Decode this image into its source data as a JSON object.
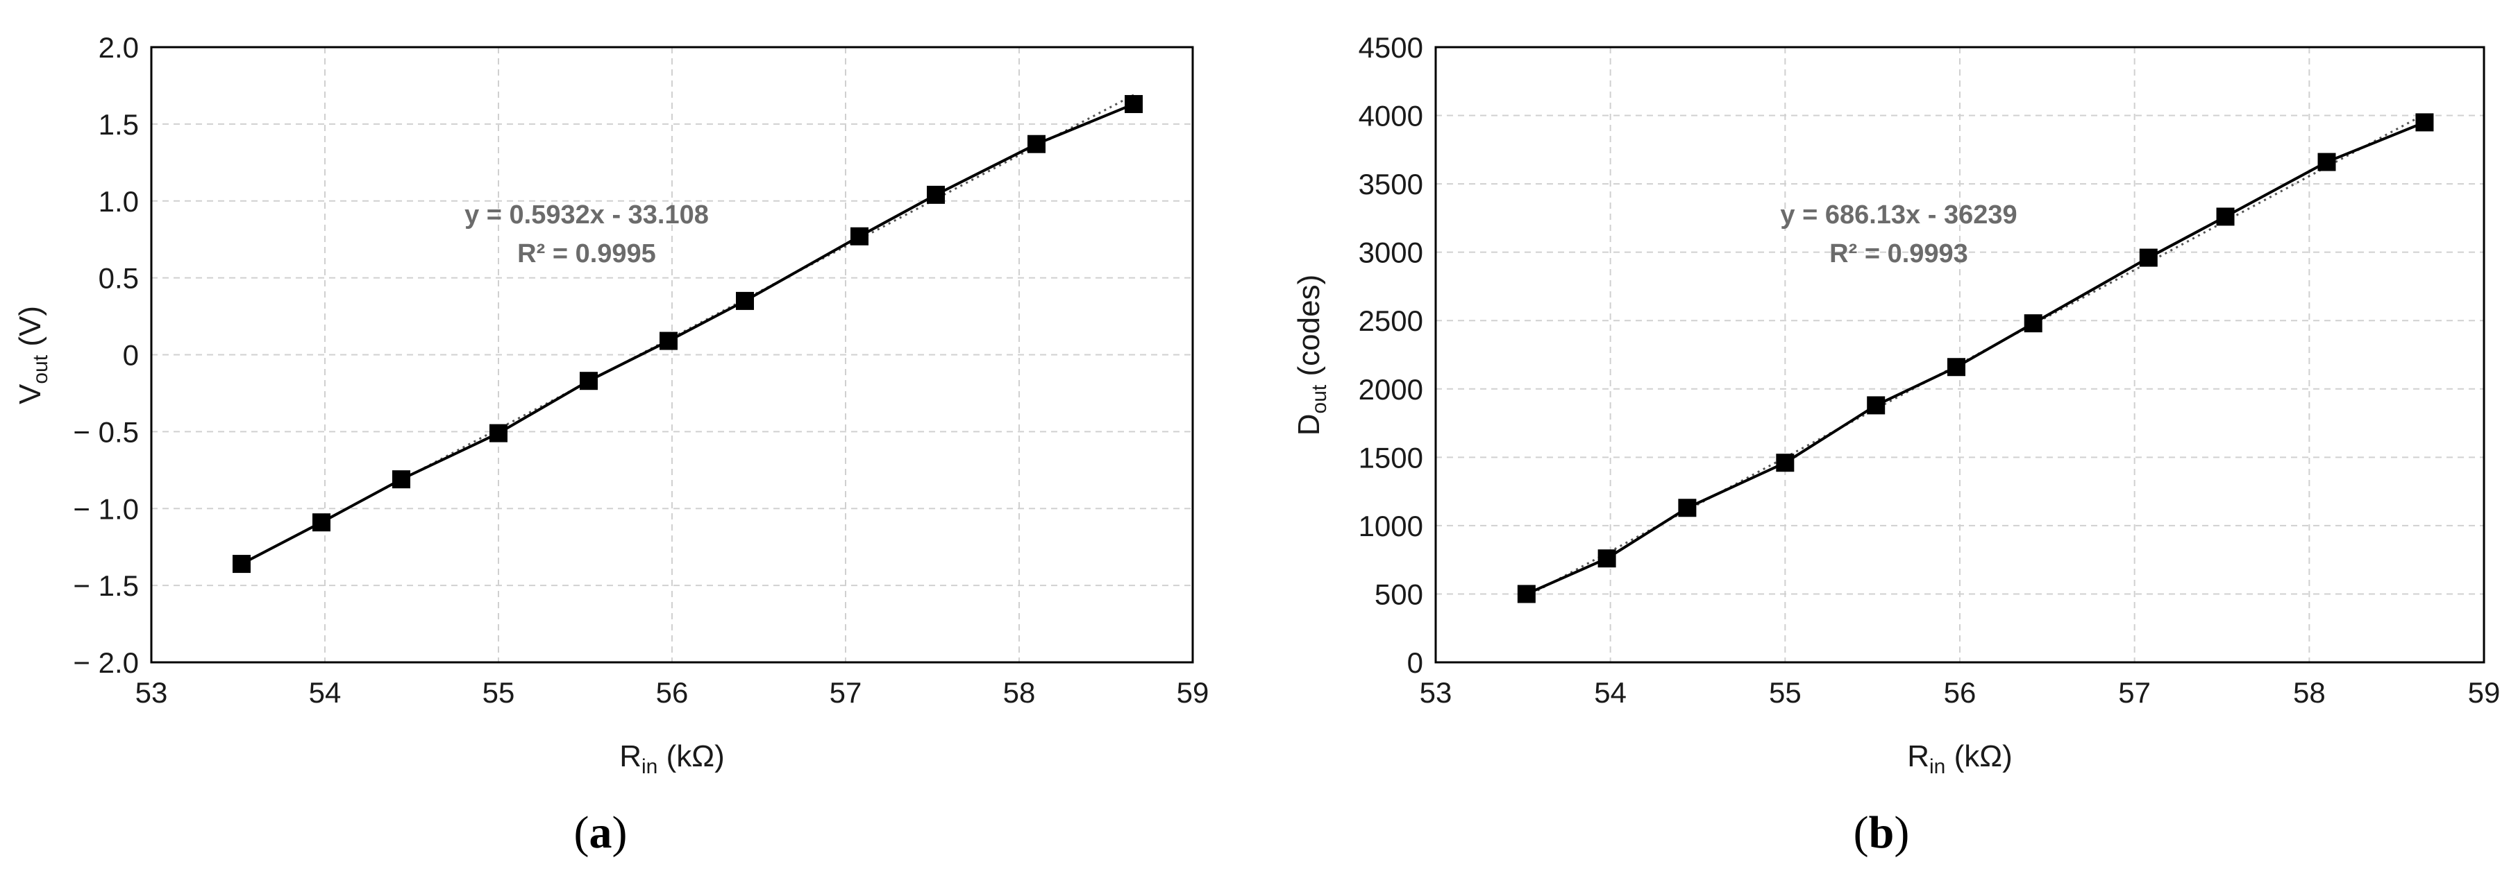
{
  "chart_data": [
    {
      "type": "line",
      "panel_label": "a",
      "xlabel": {
        "main": "R",
        "sub": "in",
        "rest": " (kΩ)"
      },
      "ylabel": {
        "main": "V",
        "sub": "out",
        "rest": " (V)"
      },
      "xlim": [
        53,
        59
      ],
      "ylim": [
        -2.0,
        2.0
      ],
      "xticks": [
        "53",
        "54",
        "55",
        "56",
        "57",
        "58",
        "59"
      ],
      "xtick_values": [
        53,
        54,
        55,
        56,
        57,
        58,
        59
      ],
      "yticks": [
        "2.0",
        "1.5",
        "1.0",
        "0.5",
        "0",
        "− 0.5",
        "− 1.0",
        "− 1.5",
        "− 2.0"
      ],
      "ytick_values": [
        2.0,
        1.5,
        1.0,
        0.5,
        0,
        -0.5,
        -1.0,
        -1.5,
        -2.0
      ],
      "grid": true,
      "x": [
        53.52,
        53.98,
        54.44,
        55.0,
        55.52,
        55.98,
        56.42,
        57.08,
        57.52,
        58.1,
        58.66
      ],
      "y": [
        -1.36,
        -1.09,
        -0.81,
        -0.51,
        -0.17,
        0.09,
        0.35,
        0.77,
        1.04,
        1.37,
        1.63
      ],
      "trendline": {
        "slope": 0.5932,
        "intercept": -33.108
      },
      "annotation": [
        "y = 0.5932x - 33.108",
        "R² = 0.9995"
      ]
    },
    {
      "type": "line",
      "panel_label": "b",
      "xlabel": {
        "main": "R",
        "sub": "in",
        "rest": " (kΩ)"
      },
      "ylabel": {
        "main": "D",
        "sub": "out",
        "rest": " (codes)"
      },
      "xlim": [
        53,
        59
      ],
      "ylim": [
        0,
        4500
      ],
      "xticks": [
        "53",
        "54",
        "55",
        "56",
        "57",
        "58",
        "59"
      ],
      "xtick_values": [
        53,
        54,
        55,
        56,
        57,
        58,
        59
      ],
      "yticks": [
        "4500",
        "4000",
        "3500",
        "3000",
        "2500",
        "2000",
        "1500",
        "1000",
        "500",
        "0"
      ],
      "ytick_values": [
        4500,
        4000,
        3500,
        3000,
        2500,
        2000,
        1500,
        1000,
        500,
        0
      ],
      "grid": true,
      "x": [
        53.52,
        53.98,
        54.44,
        55.0,
        55.52,
        55.98,
        56.42,
        57.08,
        57.52,
        58.1,
        58.66
      ],
      "y": [
        500,
        760,
        1130,
        1460,
        1880,
        2160,
        2480,
        2960,
        3260,
        3660,
        3950
      ],
      "trendline": {
        "slope": 686.13,
        "intercept": -36239
      },
      "annotation": [
        "y = 686.13x - 36239",
        "R² = 0.9993"
      ]
    }
  ]
}
